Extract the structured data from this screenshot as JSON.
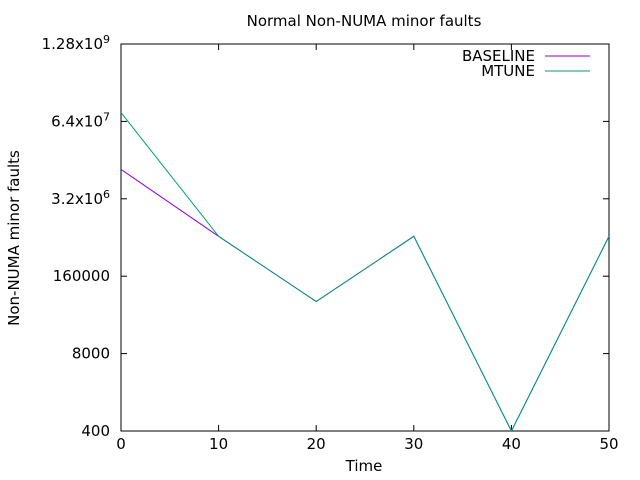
{
  "chart_data": {
    "type": "line",
    "title": "Normal Non-NUMA minor faults",
    "xlabel": "Time",
    "ylabel": "Non-NUMA minor faults",
    "xlim": [
      0,
      50
    ],
    "ylim": [
      400,
      1280000000
    ],
    "yscale": "log",
    "x_ticks": [
      0,
      10,
      20,
      30,
      40,
      50
    ],
    "x_tick_labels": [
      "0",
      "10",
      "20",
      "30",
      "40",
      "50"
    ],
    "y_ticks": [
      400,
      8000,
      160000,
      3200000,
      64000000,
      1280000000
    ],
    "y_tick_labels": [
      {
        "mantissa": "400"
      },
      {
        "mantissa": "8000"
      },
      {
        "mantissa": "160000"
      },
      {
        "mantissa": "3.2x10",
        "exp": "6"
      },
      {
        "mantissa": "6.4x10",
        "exp": "7"
      },
      {
        "mantissa": "1.28x10",
        "exp": "9"
      }
    ],
    "legend_position": "top-right",
    "grid": false,
    "series": [
      {
        "name": "BASELINE",
        "color": "#9400d3",
        "x": [
          0,
          10,
          20,
          30,
          40,
          50
        ],
        "y": [
          10000000,
          750000,
          60000,
          750000,
          400,
          750000
        ]
      },
      {
        "name": "MTUNE",
        "color": "#009e73",
        "x": [
          0,
          10,
          20,
          30,
          40,
          50
        ],
        "y": [
          90000000,
          750000,
          60000,
          750000,
          400,
          750000
        ]
      }
    ]
  }
}
